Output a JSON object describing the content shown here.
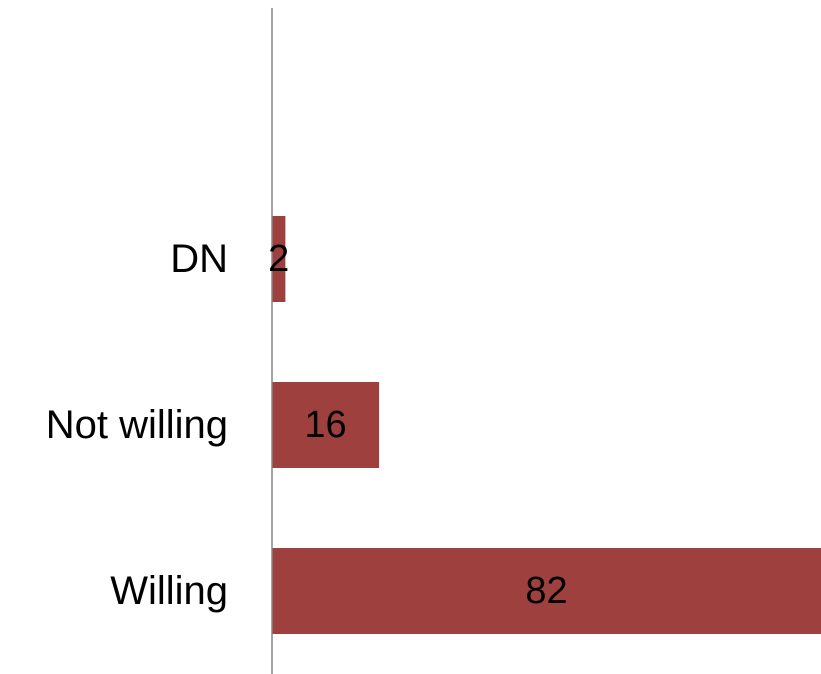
{
  "chart_data": {
    "type": "bar",
    "orientation": "horizontal",
    "categories": [
      "Willing",
      "Not willing",
      "DN"
    ],
    "values": [
      82,
      16,
      2
    ],
    "title": "",
    "xlabel": "",
    "ylabel": "",
    "xlim": [
      0,
      82
    ],
    "grid": false,
    "legend": "none",
    "bar_color": "#9E403D",
    "axis_color": "#868686"
  }
}
